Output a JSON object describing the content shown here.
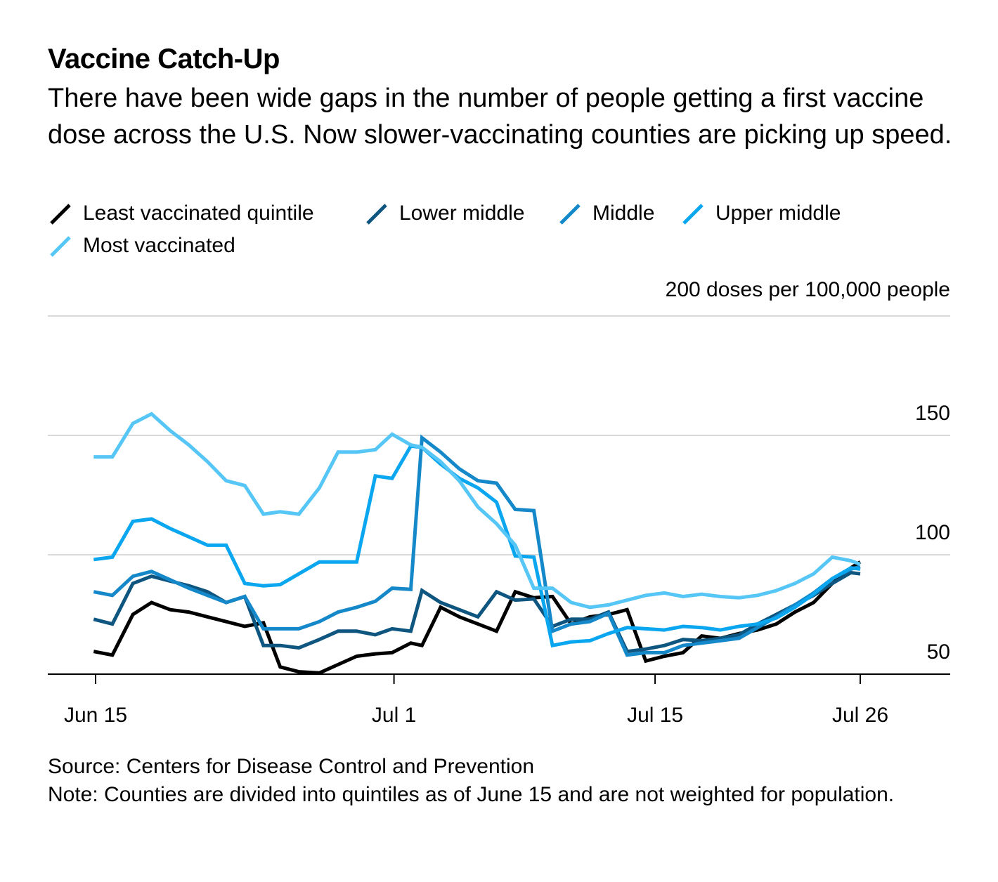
{
  "title": "Vaccine Catch-Up",
  "subtitle": "There have been wide gaps in the number of people getting a first vaccine dose across the U.S. Now slower-vaccinating counties are picking up speed.",
  "footer": {
    "source": "Source: Centers for Disease Control and Prevention",
    "note": "Note: Counties are divided into quintiles as of June 15 and are not weighted for population."
  },
  "chart_data": {
    "type": "line",
    "title": "Vaccine Catch-Up",
    "ylabel": "200 doses per 100,000 people",
    "xlabel": "",
    "ylim": [
      50,
      200
    ],
    "yticks": [
      50,
      100,
      150
    ],
    "xlim": [
      0,
      41
    ],
    "xticks": [
      {
        "day": 0,
        "label": "Jun 15"
      },
      {
        "day": 16,
        "label": "Jul 1"
      },
      {
        "day": 30,
        "label": "Jul 15"
      },
      {
        "day": 41,
        "label": "Jul 26"
      }
    ],
    "x": [
      -0.1,
      0.9,
      2,
      3,
      4,
      5,
      6,
      7,
      8,
      9,
      9.9,
      10.9,
      12,
      13,
      14,
      15,
      15.9,
      16.9,
      17.5,
      18.5,
      19.5,
      20.5,
      21.5,
      22.5,
      23.5,
      24.5,
      25.5,
      26.5,
      27.5,
      28.5,
      29.5,
      30.5,
      31.5,
      32.5,
      33.5,
      34.5,
      35.5,
      36.5,
      37.5,
      38.5,
      39.5,
      40.5,
      41
    ],
    "legend_position": "top-left",
    "grid": true,
    "series": [
      {
        "name": "Least vaccinated quintile",
        "color": "#000000",
        "values": [
          59.5,
          58,
          75,
          80,
          77,
          76,
          74,
          72,
          70,
          71.5,
          53,
          51,
          50.5,
          54,
          57.5,
          58.5,
          59,
          63,
          62,
          78,
          74,
          71,
          68,
          84.5,
          82,
          82.5,
          71,
          74,
          75,
          77,
          55.5,
          57.5,
          59,
          66,
          65,
          67,
          68.5,
          71,
          76,
          80,
          88,
          94.5,
          97
        ]
      },
      {
        "name": "Lower middle",
        "color": "#0e5680",
        "values": [
          73,
          71,
          88,
          91,
          89,
          87,
          84.5,
          80,
          82.5,
          62,
          62,
          61,
          64.5,
          68,
          68,
          66.5,
          69,
          68,
          85,
          80,
          77,
          74,
          84.5,
          81,
          81.5,
          70,
          73,
          73,
          76,
          59.5,
          60.5,
          62,
          64.5,
          64,
          65,
          66.5,
          71,
          75,
          79,
          83,
          88,
          92.5,
          92
        ]
      },
      {
        "name": "Middle",
        "color": "#1588c9",
        "values": [
          84.5,
          83,
          91,
          93,
          89.5,
          86,
          83,
          80,
          82.5,
          69,
          69,
          69,
          72,
          76,
          78,
          80.5,
          86,
          85.5,
          149,
          143,
          136,
          131,
          130,
          119,
          118.5,
          68,
          71,
          72,
          75.5,
          58,
          59,
          59,
          62,
          63,
          64,
          65,
          69.5,
          74,
          79,
          84,
          90,
          94,
          95
        ]
      },
      {
        "name": "Upper middle",
        "color": "#0aa6f0",
        "values": [
          98,
          99,
          114,
          115,
          111,
          107.5,
          104,
          104,
          88,
          87,
          87.5,
          92,
          97,
          97,
          97,
          133,
          132,
          145.5,
          145,
          138,
          132,
          128,
          122,
          99.5,
          99,
          62,
          63.5,
          64,
          67,
          69.5,
          69,
          68.5,
          70,
          69.5,
          68.5,
          70,
          71,
          73.5,
          78,
          83.5,
          90,
          94.5,
          94
        ]
      },
      {
        "name": "Most vaccinated",
        "color": "#55c6f5",
        "values": [
          141,
          141,
          155,
          159,
          152,
          146,
          139,
          131,
          129,
          117,
          118,
          117,
          128,
          143,
          143,
          144,
          150.5,
          146,
          145,
          139,
          131,
          120,
          113,
          104,
          86,
          86,
          80,
          78,
          79,
          81,
          83,
          84,
          82.5,
          83.5,
          82.5,
          82,
          83,
          85,
          88,
          92,
          99,
          97.5,
          96
        ]
      }
    ]
  }
}
